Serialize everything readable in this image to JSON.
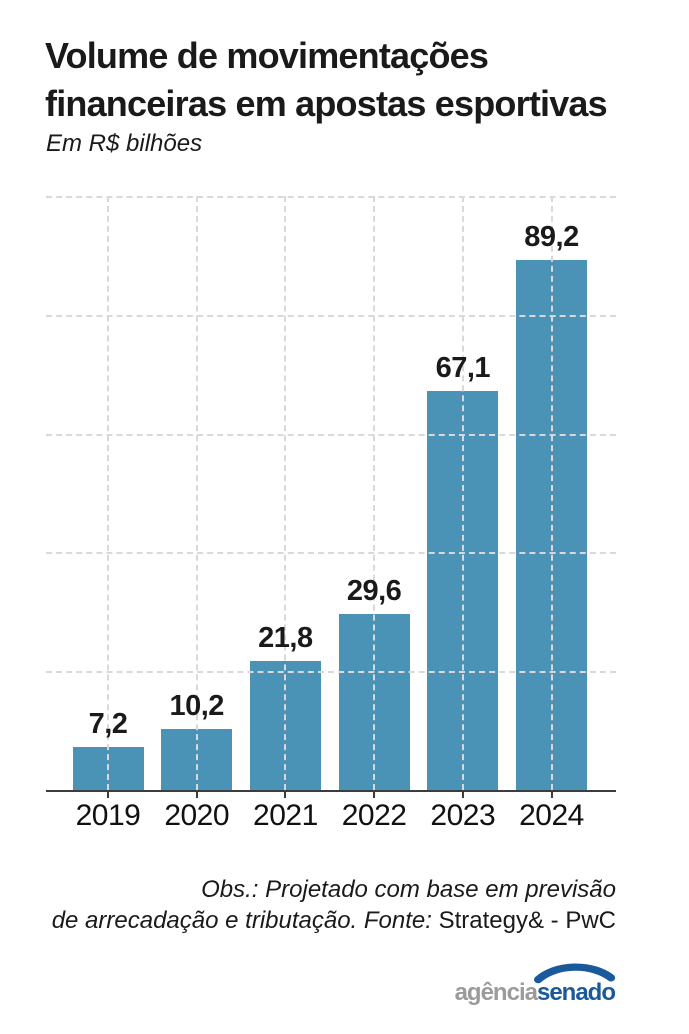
{
  "header": {
    "title_line1": "Volume de movimentações",
    "title_line2": "financeiras em apostas esportivas",
    "subtitle": "Em R$ bilhões"
  },
  "chart_data": {
    "type": "bar",
    "title": "Volume de movimentações financeiras em apostas esportivas",
    "subtitle": "Em R$ bilhões",
    "categories": [
      "2019",
      "2020",
      "2021",
      "2022",
      "2023",
      "2024"
    ],
    "values": [
      7.2,
      10.2,
      21.8,
      29.6,
      67.1,
      89.2
    ],
    "value_labels": [
      "7,2",
      "10,2",
      "21,8",
      "29,6",
      "67,1",
      "89,2"
    ],
    "xlabel": "",
    "ylabel": "R$ bilhões",
    "ylim": [
      0,
      100
    ],
    "gridline_values": [
      20,
      40,
      60,
      80,
      100
    ],
    "grid": true,
    "legend_position": "none",
    "bar_color": "#4a93b7"
  },
  "footer": {
    "note_line1": "Obs.: Projetado com base em previsão",
    "note_line2_italic": "de arrecadação e tributação. Fonte:",
    "note_line2_source": "Strategy& - PwC"
  },
  "logo": {
    "part1": "agência",
    "part2": "senado",
    "part1_color": "#9b9b9b",
    "part2_color": "#1a5a9a",
    "arc_color": "#1a5a9a"
  },
  "colors": {
    "background": "#ffffff",
    "text": "#1a1a1a",
    "gridline": "#d9d9d9",
    "axis": "#3c3c3c",
    "bar": "#4a93b7"
  }
}
